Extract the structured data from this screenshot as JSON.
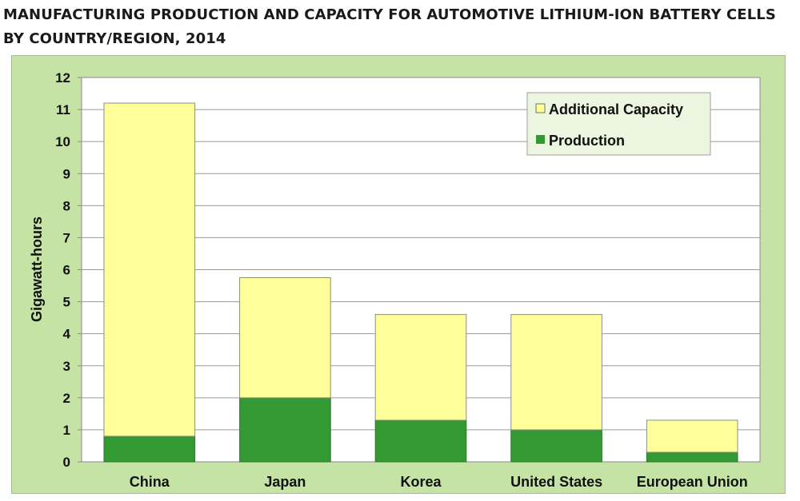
{
  "title_line1": "MANUFACTURING PRODUCTION AND CAPACITY FOR AUTOMOTIVE LITHIUM-ION BATTERY CELLS",
  "title_line2": "BY COUNTRY/REGION, 2014",
  "colors": {
    "frame_bg": "#c6e3a6",
    "plot_bg": "#ffffff",
    "production": "#339933",
    "additional_capacity": "#ffff99",
    "legend_bg": "#ebf5e0"
  },
  "chart_data": {
    "type": "bar",
    "stacked": true,
    "title": "MANUFACTURING PRODUCTION AND CAPACITY FOR AUTOMOTIVE LITHIUM-ION BATTERY CELLS BY COUNTRY/REGION, 2014",
    "xlabel": "",
    "ylabel": "Gigawatt-hours",
    "ylim": [
      0,
      12
    ],
    "yticks": [
      "0",
      "1",
      "2",
      "3",
      "4",
      "5",
      "6",
      "7",
      "8",
      "9",
      "10",
      "11",
      "12"
    ],
    "grid": true,
    "legend_position": "top-right",
    "categories": [
      "China",
      "Japan",
      "Korea",
      "United States",
      "European Union"
    ],
    "series": [
      {
        "name": "Production",
        "values": [
          0.8,
          2.0,
          1.3,
          1.0,
          0.3
        ]
      },
      {
        "name": "Additional Capacity",
        "values": [
          10.4,
          3.75,
          3.3,
          3.6,
          1.0
        ]
      }
    ]
  }
}
